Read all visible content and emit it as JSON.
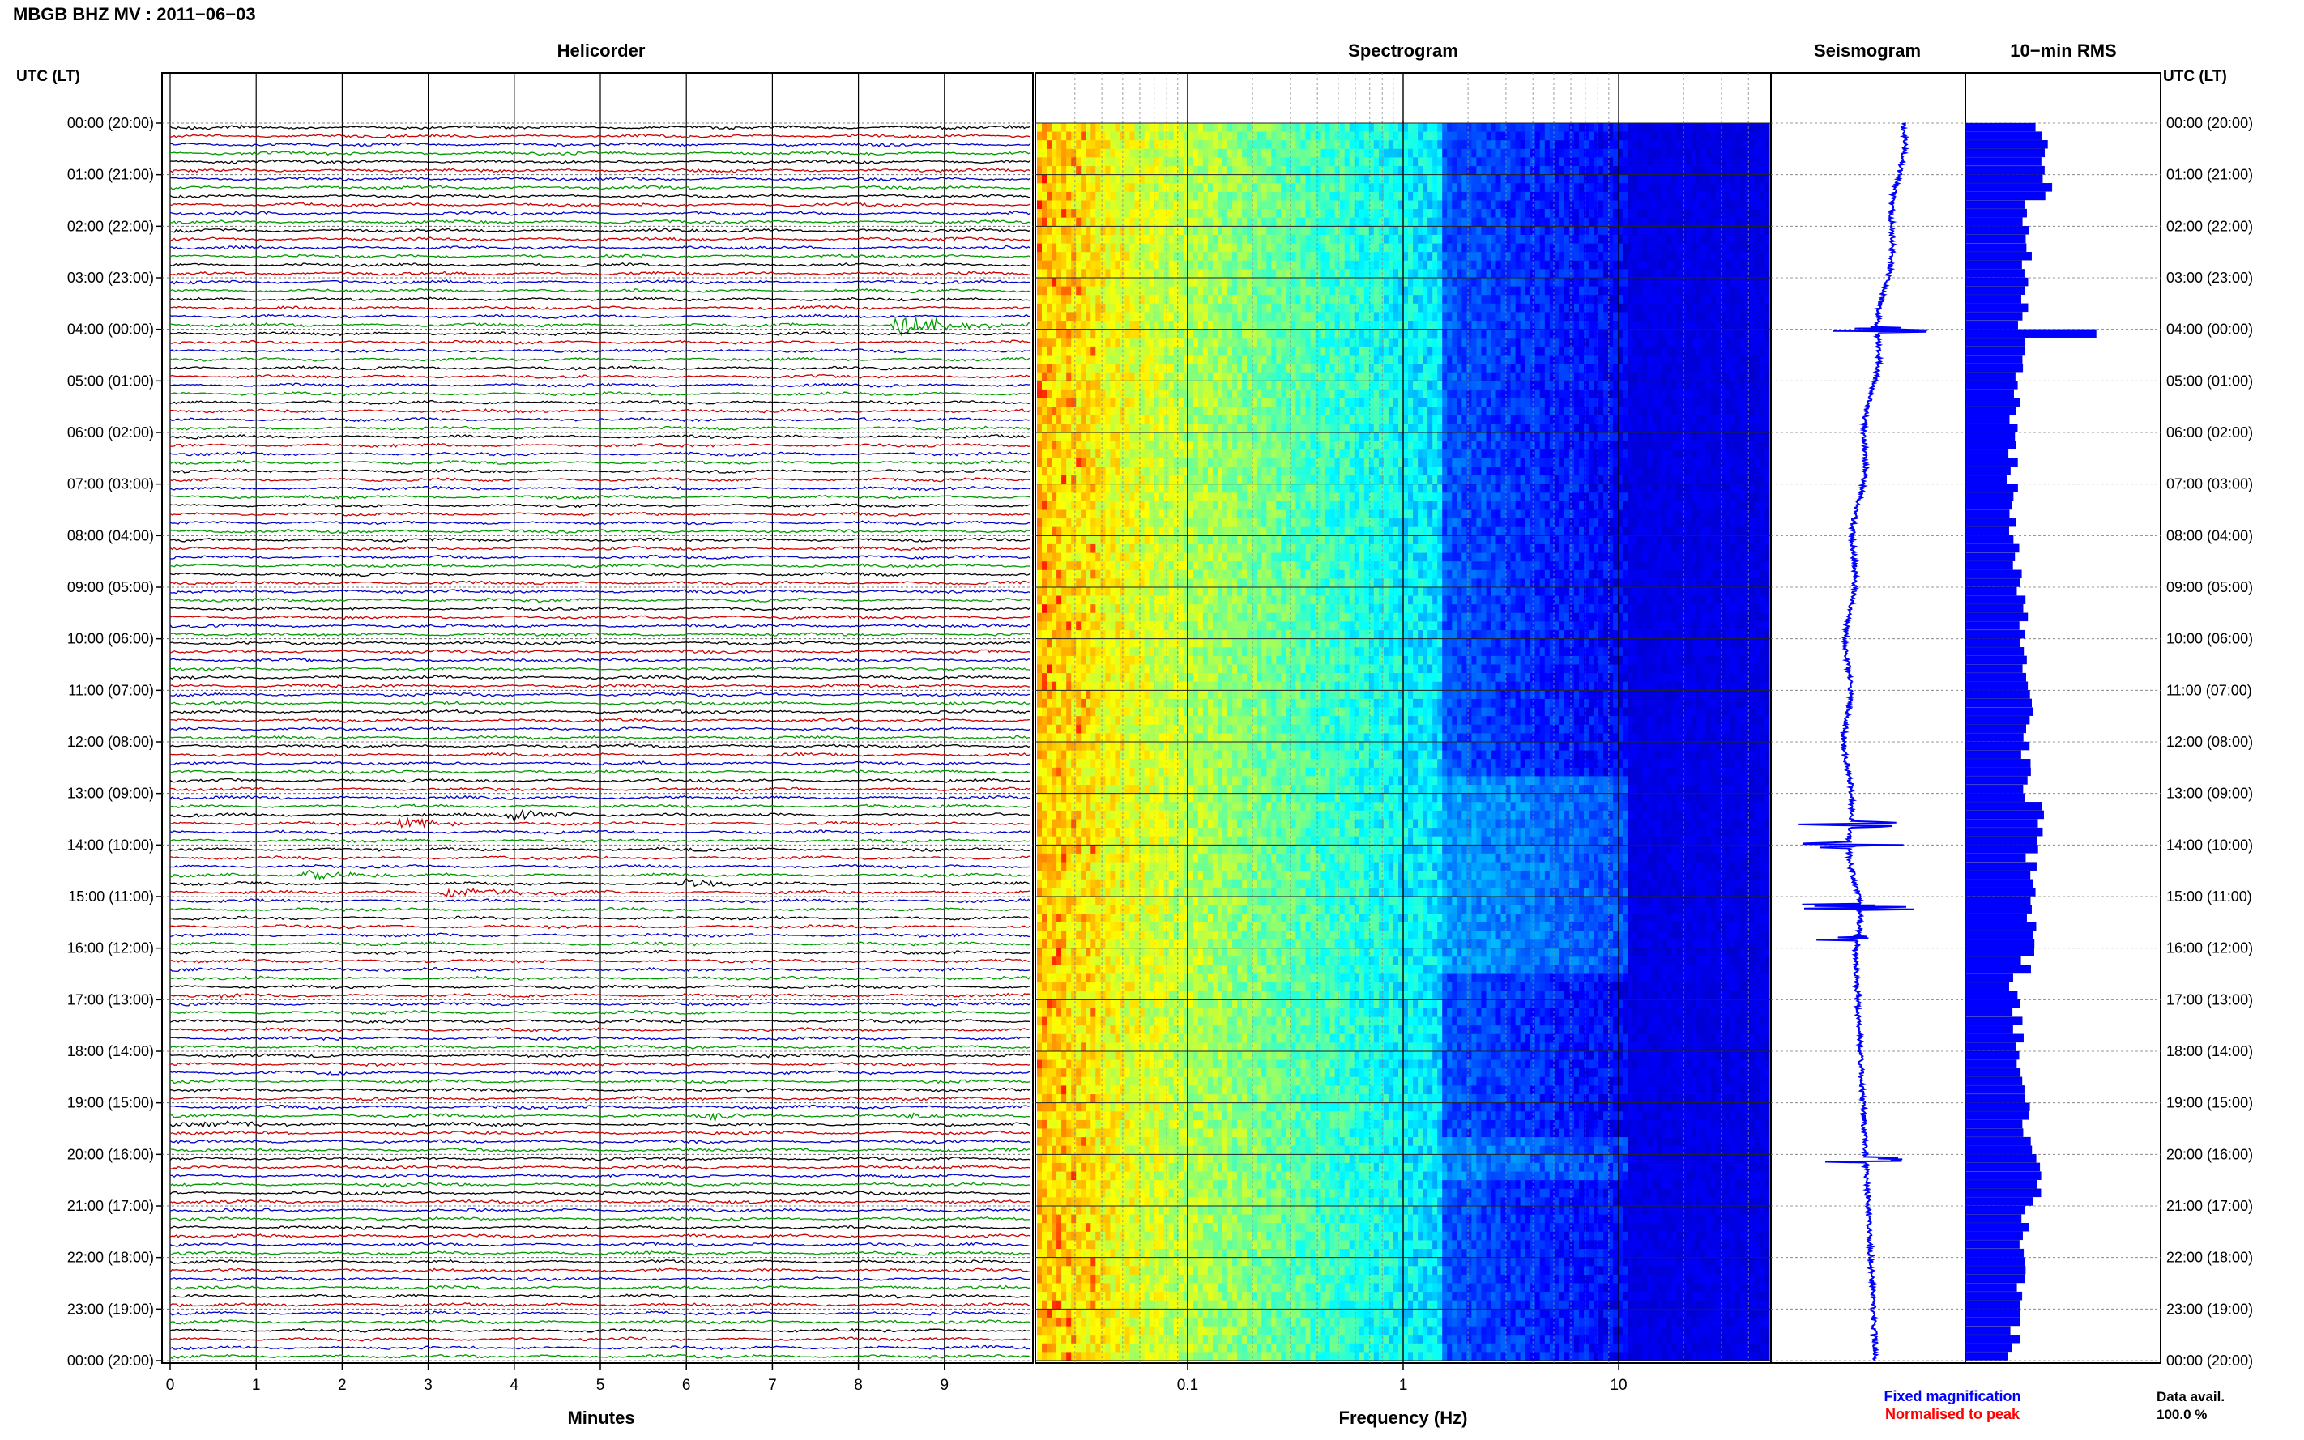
{
  "header": {
    "title": "MBGB BHZ MV : 2011−06−03"
  },
  "colors": {
    "trace_cycle": [
      "#000000",
      "#cc0000",
      "#0000cc",
      "#009900"
    ],
    "accent_blue": "#0000ff",
    "accent_red": "#ff0000",
    "spectrogram_low": "#00008b",
    "spectrogram_high": "#ff4000"
  },
  "chart_data": [
    {
      "type": "line",
      "panel": "helicorder",
      "title": "Helicorder",
      "xlabel": "Minutes",
      "ylabel": "UTC (LT)",
      "xlim": [
        0,
        10
      ],
      "x_ticks": [
        "0",
        "1",
        "2",
        "3",
        "4",
        "5",
        "6",
        "7",
        "8",
        "9"
      ],
      "y_ticks": [
        "00:00 (20:00)",
        "01:00 (21:00)",
        "02:00 (22:00)",
        "03:00 (23:00)",
        "04:00 (00:00)",
        "05:00 (01:00)",
        "06:00 (02:00)",
        "07:00 (03:00)",
        "08:00 (04:00)",
        "09:00 (05:00)",
        "10:00 (06:00)",
        "11:00 (07:00)",
        "12:00 (08:00)",
        "13:00 (09:00)",
        "14:00 (10:00)",
        "15:00 (11:00)",
        "16:00 (12:00)",
        "17:00 (13:00)",
        "18:00 (14:00)",
        "19:00 (15:00)",
        "20:00 (16:00)",
        "21:00 (17:00)",
        "22:00 (18:00)",
        "23:00 (19:00)",
        "00:00 (20:00)"
      ],
      "rows_per_hour": 6,
      "row_count": 144,
      "events": [
        {
          "hour": 3,
          "row": 5,
          "start_min": 8.4,
          "end_min": 10.0,
          "amp": 2.2
        },
        {
          "hour": 13,
          "row": 2,
          "start_min": 3.9,
          "end_min": 5.1,
          "amp": 1.3
        },
        {
          "hour": 13,
          "row": 3,
          "start_min": 2.6,
          "end_min": 3.9,
          "amp": 1.2
        },
        {
          "hour": 14,
          "row": 3,
          "start_min": 1.5,
          "end_min": 3.1,
          "amp": 1.1
        },
        {
          "hour": 14,
          "row": 4,
          "start_min": 5.9,
          "end_min": 6.9,
          "amp": 0.9
        },
        {
          "hour": 14,
          "row": 5,
          "start_min": 3.1,
          "end_min": 5.3,
          "amp": 0.8
        },
        {
          "hour": 16,
          "row": 5,
          "start_min": 0.5,
          "end_min": 1.0,
          "amp": 0.5
        },
        {
          "hour": 19,
          "row": 0,
          "start_min": 3.7,
          "end_min": 4.1,
          "amp": 0.6
        },
        {
          "hour": 19,
          "row": 1,
          "start_min": 6.2,
          "end_min": 7.3,
          "amp": 0.9
        },
        {
          "hour": 19,
          "row": 1,
          "start_min": 8.5,
          "end_min": 9.2,
          "amp": 0.7
        },
        {
          "hour": 19,
          "row": 2,
          "start_min": 0.0,
          "end_min": 4.2,
          "amp": 0.5
        }
      ]
    },
    {
      "type": "heatmap",
      "panel": "spectrogram",
      "title": "Spectrogram",
      "xlabel": "Frequency (Hz)",
      "x_scale": "log",
      "xlim": [
        0.02,
        50
      ],
      "x_ticks": [
        "0.1",
        "1",
        "10"
      ],
      "colormap": "jet"
    },
    {
      "type": "line",
      "panel": "seismogram",
      "title": "Seismogram",
      "spikes_hours": [
        4.0,
        13.6,
        14.0,
        15.2,
        15.8,
        20.1
      ]
    },
    {
      "type": "bar",
      "panel": "rms",
      "title": "10−min RMS",
      "orientation": "horizontal",
      "bins": 144,
      "bin_minutes": 10,
      "y_ticks_right": [
        "00:00 (20:00)",
        "01:00 (21:00)",
        "02:00 (22:00)",
        "03:00 (23:00)",
        "04:00 (00:00)",
        "05:00 (01:00)",
        "06:00 (02:00)",
        "07:00 (03:00)",
        "08:00 (04:00)",
        "09:00 (05:00)",
        "10:00 (06:00)",
        "11:00 (07:00)",
        "12:00 (08:00)",
        "13:00 (09:00)",
        "14:00 (10:00)",
        "15:00 (11:00)",
        "16:00 (12:00)",
        "17:00 (13:00)",
        "18:00 (14:00)",
        "19:00 (15:00)",
        "20:00 (16:00)",
        "21:00 (17:00)",
        "22:00 (18:00)",
        "23:00 (19:00)",
        "00:00 (20:00)"
      ],
      "y_label_right": "UTC (LT)"
    }
  ],
  "legend": {
    "fixed": "Fixed magnification",
    "normalised": "Normalised to peak"
  },
  "availability": {
    "label": "Data avail.",
    "value": "100.0 %"
  }
}
